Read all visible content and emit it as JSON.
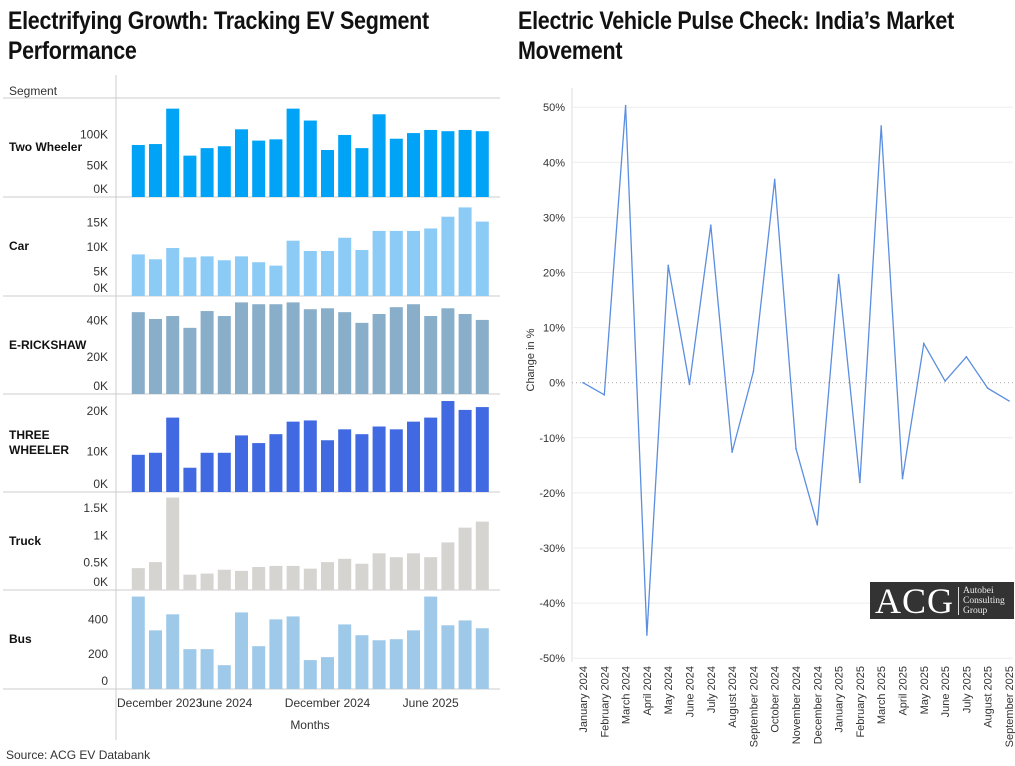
{
  "left": {
    "title": "Electrifying Growth: Tracking EV Segment Performance",
    "segment_header": "Segment",
    "source": "Source: ACG EV Databank"
  },
  "right": {
    "title": "Electric Vehicle Pulse Check: India’s Market Movement"
  },
  "logo": {
    "big": "ACG",
    "lines": [
      "Autobei",
      "Consulting",
      "Group"
    ]
  },
  "chart_data": [
    {
      "type": "bar",
      "title": "Electrifying Growth: Tracking EV Segment Performance",
      "xlabel": "Months",
      "months": [
        "January 2024",
        "February 2024",
        "March 2024",
        "April 2024",
        "May 2024",
        "June 2024",
        "July 2024",
        "August 2024",
        "September 2024",
        "October 2024",
        "November 2024",
        "December 2024",
        "January 2025",
        "February 2025",
        "March 2025",
        "April 2025",
        "May 2025",
        "June 2025",
        "July 2025",
        "August 2025",
        "September 2025"
      ],
      "x_tick_labels": [
        {
          "label": "December 2023",
          "month_index": -1
        },
        {
          "label": "June 2024",
          "month_index": 5
        },
        {
          "label": "December 2024",
          "month_index": 11
        },
        {
          "label": "June 2025",
          "month_index": 17
        }
      ],
      "series": [
        {
          "name": "Two Wheeler",
          "color": "#00a3f5",
          "ylim": [
            0,
            150000
          ],
          "ticks": [
            {
              "v": 0,
              "label": "0K"
            },
            {
              "v": 50000,
              "label": "50K"
            },
            {
              "v": 100000,
              "label": "100K"
            }
          ],
          "values": [
            83000,
            84500,
            141000,
            66000,
            78000,
            81000,
            108000,
            90000,
            92000,
            141000,
            122000,
            75000,
            99000,
            78000,
            132000,
            93000,
            102000,
            107000,
            105000,
            107000,
            105000
          ]
        },
        {
          "name": "Car",
          "color": "#8ccbf6",
          "ylim": [
            0,
            19000
          ],
          "ticks": [
            {
              "v": 0,
              "label": "0K"
            },
            {
              "v": 5000,
              "label": "5K"
            },
            {
              "v": 10000,
              "label": "10K"
            },
            {
              "v": 15000,
              "label": "15K"
            }
          ],
          "values": [
            8500,
            7500,
            9800,
            7900,
            8100,
            7300,
            8100,
            6900,
            6200,
            11300,
            9200,
            9200,
            11900,
            9400,
            13300,
            13300,
            13300,
            13800,
            16200,
            18100,
            15200
          ]
        },
        {
          "name": "E-RICKSHAW",
          "color": "#88aec9",
          "ylim": [
            0,
            51000
          ],
          "ticks": [
            {
              "v": 0,
              "label": "0K"
            },
            {
              "v": 20000,
              "label": "20K"
            },
            {
              "v": 40000,
              "label": "40K"
            }
          ],
          "values": [
            44400,
            40700,
            42300,
            35900,
            45000,
            42300,
            49700,
            48700,
            48700,
            49700,
            46000,
            46500,
            44400,
            38600,
            43400,
            47100,
            48700,
            42300,
            46500,
            43400,
            40200
          ]
        },
        {
          "name": "THREE WHEELER",
          "color": "#4169e1",
          "ylim": [
            0,
            23000
          ],
          "ticks": [
            {
              "v": 0,
              "label": "0K"
            },
            {
              "v": 10000,
              "label": "10K"
            },
            {
              "v": 20000,
              "label": "20K"
            }
          ],
          "values": [
            9200,
            9700,
            18400,
            6000,
            9700,
            9700,
            14000,
            12100,
            14300,
            17400,
            17700,
            12800,
            15500,
            14300,
            16200,
            15500,
            17400,
            18400,
            22500,
            20300,
            21000
          ]
        },
        {
          "name": "Truck",
          "color": "#d5d4d0",
          "ylim": [
            0,
            1700
          ],
          "ticks": [
            {
              "v": 0,
              "label": "0K"
            },
            {
              "v": 500,
              "label": "0.5K"
            },
            {
              "v": 1000,
              "label": "1K"
            },
            {
              "v": 1500,
              "label": "1.5K"
            }
          ],
          "values": [
            400,
            510,
            1690,
            280,
            300,
            370,
            350,
            420,
            440,
            440,
            390,
            510,
            570,
            480,
            670,
            600,
            670,
            600,
            870,
            1140,
            1250
          ]
        },
        {
          "name": "Bus",
          "color": "#9fc9e9",
          "ylim": [
            0,
            540
          ],
          "ticks": [
            {
              "v": 0,
              "label": "0"
            },
            {
              "v": 200,
              "label": "200"
            },
            {
              "v": 400,
              "label": "400"
            }
          ],
          "values": [
            531,
            337,
            429,
            229,
            229,
            137,
            440,
            246,
            400,
            417,
            166,
            183,
            371,
            309,
            280,
            286,
            337,
            531,
            366,
            394,
            349
          ]
        }
      ]
    },
    {
      "type": "line",
      "title": "Electric Vehicle Pulse Check: India’s Market Movement",
      "ylabel": "Change in %",
      "ylim": [
        -50,
        50
      ],
      "yticks": [
        50,
        40,
        30,
        20,
        10,
        0,
        -10,
        -20,
        -30,
        -40,
        -50
      ],
      "grid": true,
      "color": "#5b8ee0",
      "categories": [
        "January 2024",
        "February 2024",
        "March 2024",
        "April 2024",
        "May 2024",
        "June 2024",
        "July 2024",
        "August 2024",
        "September 2024",
        "October 2024",
        "November 2024",
        "December 2024",
        "January 2025",
        "February 2025",
        "March 2025",
        "April 2025",
        "May 2025",
        "June 2025",
        "July 2025",
        "August 2025",
        "September 2025"
      ],
      "values": [
        0,
        -2.2,
        50.3,
        -45.8,
        21.3,
        -0.3,
        28.6,
        -12.6,
        2.0,
        36.9,
        -12.0,
        -25.8,
        19.6,
        -18.1,
        46.6,
        -17.4,
        7.1,
        0.3,
        4.7,
        -1.0,
        -3.3
      ]
    }
  ]
}
